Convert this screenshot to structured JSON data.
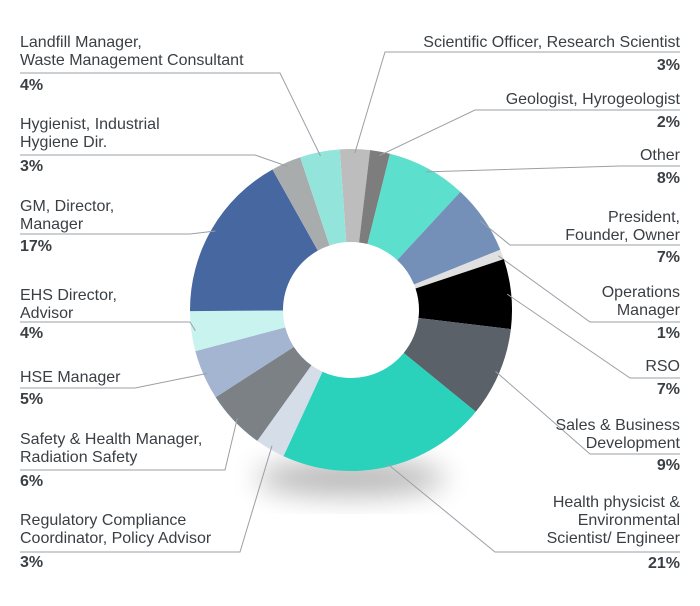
{
  "chart_data": {
    "type": "pie",
    "categories": [
      "Scientific Officer, Research Scientist",
      "Geologist, Hyrogeologist",
      "Other",
      "President,\nFounder, Owner",
      "Operations\nManager",
      "RSO",
      "Sales & Business\nDevelopment",
      "Health physicist &\nEnvironmental\nScientist/ Engineer",
      "Regulatory Compliance\nCoordinator, Policy Advisor",
      "Safety & Health Manager,\nRadiation Safety",
      "HSE Manager",
      "EHS Director,\nAdvisor",
      "GM, Director,\nManager",
      "Hygienist, Industrial\nHygiene Dir.",
      "Landfill Manager,\nWaste Management Consultant"
    ],
    "values": [
      3,
      2,
      8,
      7,
      1,
      7,
      9,
      21,
      3,
      6,
      5,
      4,
      17,
      3,
      4
    ],
    "value_labels": [
      "3%",
      "2%",
      "8%",
      "7%",
      "1%",
      "7%",
      "9%",
      "21%",
      "3%",
      "6%",
      "5%",
      "4%",
      "17%",
      "3%",
      "4%"
    ],
    "colors": [
      "#bdbdbd",
      "#7d7d7d",
      "#5cdfcc",
      "#7590b8",
      "#e0e0e0",
      "#000000",
      "#5a6169",
      "#2ad1bb",
      "#d5dde8",
      "#7c8185",
      "#a4b5d2",
      "#c8f3ee",
      "#4667a0",
      "#a9acad",
      "#93e5dc"
    ]
  }
}
